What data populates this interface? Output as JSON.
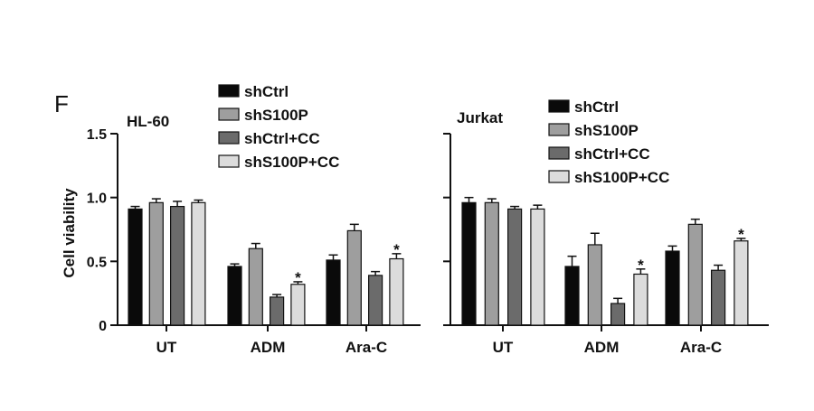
{
  "panel_label": "F",
  "ylabel": "Cell viability",
  "legend": [
    "shCtrl",
    "shS100P",
    "shCtrl+CC",
    "shS100P+CC"
  ],
  "series_colors": [
    "#0a0a0a",
    "#9e9e9e",
    "#6b6b6b",
    "#dcdcdc"
  ],
  "chart_data": [
    {
      "type": "bar",
      "title": "HL-60",
      "ylabel": "Cell viability",
      "categories": [
        "UT",
        "ADM",
        "Ara-C"
      ],
      "series": [
        {
          "name": "shCtrl",
          "values": [
            0.91,
            0.46,
            0.51
          ],
          "errors": [
            0.02,
            0.02,
            0.04
          ]
        },
        {
          "name": "shS100P",
          "values": [
            0.96,
            0.6,
            0.74
          ],
          "errors": [
            0.03,
            0.04,
            0.05
          ]
        },
        {
          "name": "shCtrl+CC",
          "values": [
            0.93,
            0.22,
            0.39
          ],
          "errors": [
            0.04,
            0.02,
            0.03
          ]
        },
        {
          "name": "shS100P+CC",
          "values": [
            0.96,
            0.32,
            0.52
          ],
          "errors": [
            0.02,
            0.02,
            0.04
          ]
        }
      ],
      "significance": [
        {
          "category": "ADM",
          "series": "shS100P+CC",
          "label": "*"
        },
        {
          "category": "Ara-C",
          "series": "shS100P+CC",
          "label": "*"
        }
      ],
      "ylim": [
        0,
        1.5
      ],
      "yticks": [
        "0",
        "0.5",
        "1.0",
        "1.5"
      ]
    },
    {
      "type": "bar",
      "title": "Jurkat",
      "categories": [
        "UT",
        "ADM",
        "Ara-C"
      ],
      "series": [
        {
          "name": "shCtrl",
          "values": [
            0.96,
            0.46,
            0.58
          ],
          "errors": [
            0.04,
            0.08,
            0.04
          ]
        },
        {
          "name": "shS100P",
          "values": [
            0.96,
            0.63,
            0.79
          ],
          "errors": [
            0.03,
            0.09,
            0.04
          ]
        },
        {
          "name": "shCtrl+CC",
          "values": [
            0.91,
            0.17,
            0.43
          ],
          "errors": [
            0.02,
            0.04,
            0.04
          ]
        },
        {
          "name": "shS100P+CC",
          "values": [
            0.91,
            0.4,
            0.66
          ],
          "errors": [
            0.03,
            0.04,
            0.02
          ]
        }
      ],
      "significance": [
        {
          "category": "ADM",
          "series": "shS100P+CC",
          "label": "*"
        },
        {
          "category": "Ara-C",
          "series": "shS100P+CC",
          "label": "*"
        }
      ],
      "ylim": [
        0,
        1.5
      ],
      "yticks": [
        "",
        "",
        "",
        ""
      ]
    }
  ]
}
